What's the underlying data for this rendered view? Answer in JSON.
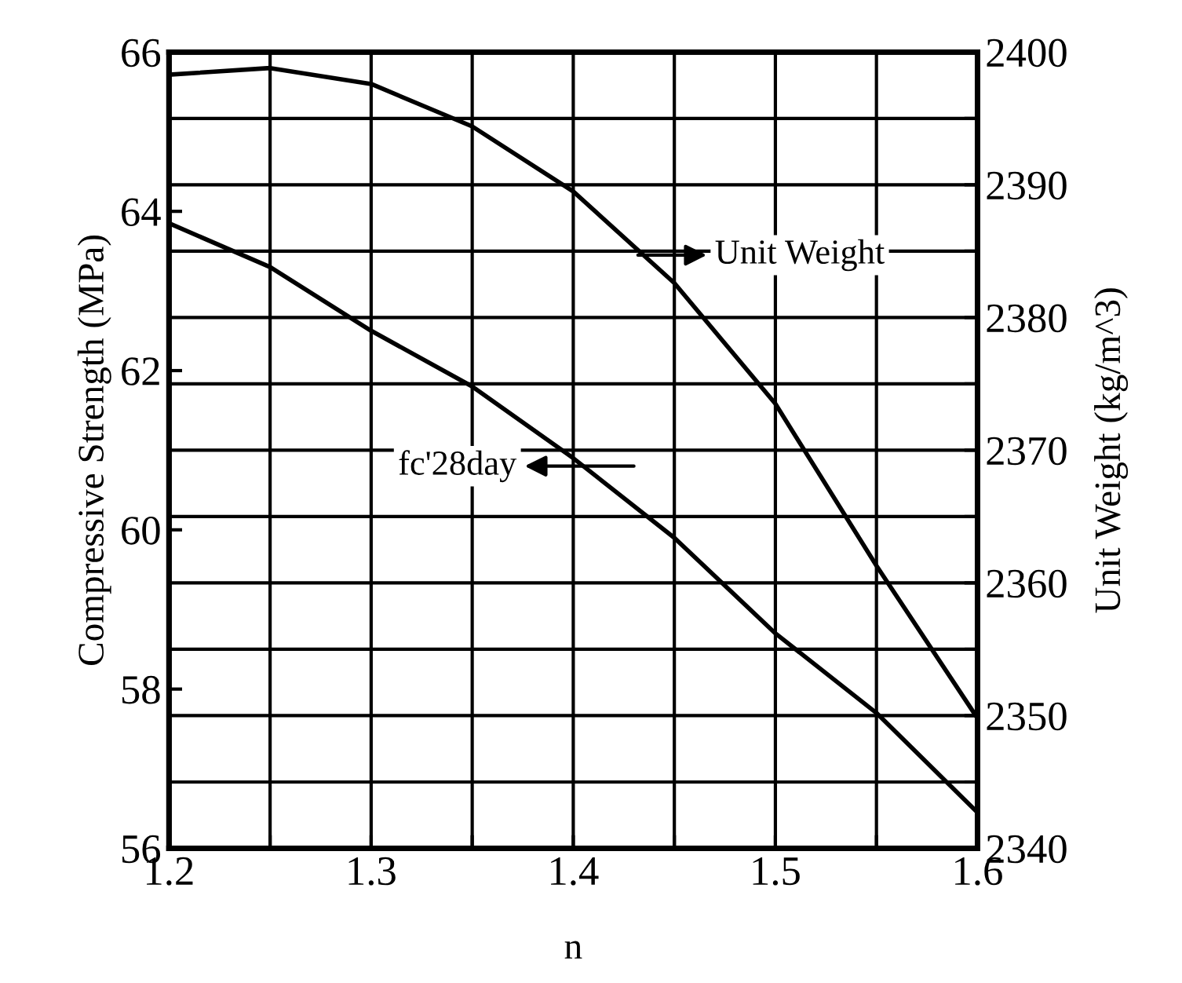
{
  "chart_data": {
    "type": "line",
    "xlabel": "n",
    "ylabel": "Compressive Strength (MPa)",
    "y2label": "Unit Weight (kg/m^3)",
    "x": [
      1.2,
      1.25,
      1.3,
      1.35,
      1.4,
      1.45,
      1.5,
      1.55,
      1.6
    ],
    "series": [
      {
        "color": "#000000",
        "axis": "y2",
        "values": [
          2398.3,
          2398.8,
          2397.6,
          2394.4,
          2389.5,
          2382.6,
          2373.5,
          2361.3,
          2349.8
        ]
      },
      {
        "color": "#000000",
        "values": [
          63.85,
          63.3,
          62.5,
          61.8,
          60.9,
          59.9,
          58.7,
          57.7,
          56.45
        ]
      }
    ],
    "annotations": [
      "Unit Weight",
      "fc'28day"
    ],
    "xlim": [
      1.2,
      1.6
    ],
    "xticks": [
      1.2,
      {
        "value": 1.25,
        "label": null
      },
      1.3,
      {
        "value": 1.35,
        "label": null
      },
      1.4,
      {
        "value": 1.45,
        "label": null
      },
      1.5,
      {
        "value": 1.55,
        "label": null
      },
      1.6
    ],
    "ylim": [
      56,
      66
    ],
    "yticks": [
      56,
      58,
      60,
      62,
      64,
      66
    ],
    "y2lim": [
      2340,
      2400
    ],
    "y2ticks": [
      2340,
      {
        "value": 2345,
        "label": null
      },
      2350,
      {
        "value": 2355,
        "label": null
      },
      2360,
      {
        "value": 2365,
        "label": null
      },
      2370,
      {
        "value": 2375,
        "label": null
      },
      2380,
      {
        "value": 2385,
        "label": null
      },
      2390,
      {
        "value": 2395,
        "label": null
      },
      2400
    ],
    "grid": true,
    "marker": "none",
    "line_style": "solid",
    "legend": false
  }
}
